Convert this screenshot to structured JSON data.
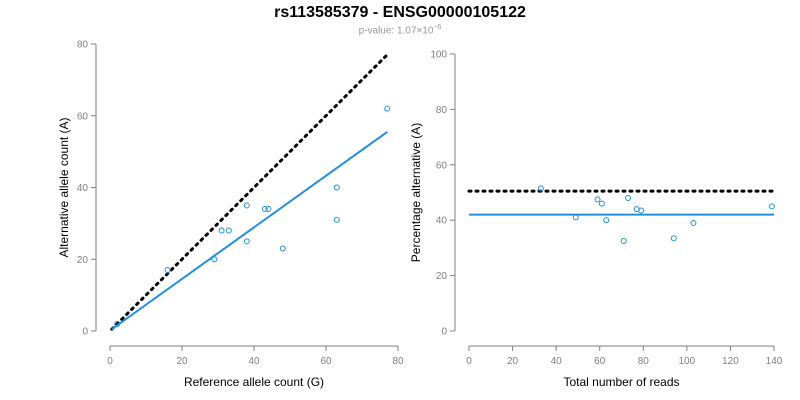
{
  "title": "rs113585379 - ENSG00000105122",
  "subtitle": {
    "prefix": "p-value: 1.07",
    "times": "×10",
    "exponent": "−6"
  },
  "colors": {
    "points": "#1f8fdf",
    "fit_line": "#1f8fdf",
    "reference_line": "#000000",
    "axis": "#7f7f7f"
  },
  "chart_data": [
    {
      "type": "scatter",
      "xlabel": "Reference allele count (G)",
      "ylabel": "Alternative allele count (A)",
      "xlim": [
        0,
        80
      ],
      "ylim": [
        0,
        80
      ],
      "xticks": [
        0,
        20,
        40,
        60,
        80
      ],
      "yticks": [
        0,
        20,
        40,
        60,
        80
      ],
      "grid": false,
      "points": [
        {
          "x": 2,
          "y": 2
        },
        {
          "x": 16,
          "y": 17
        },
        {
          "x": 29,
          "y": 20
        },
        {
          "x": 31,
          "y": 28
        },
        {
          "x": 33,
          "y": 28
        },
        {
          "x": 38,
          "y": 35
        },
        {
          "x": 38,
          "y": 25
        },
        {
          "x": 43,
          "y": 34
        },
        {
          "x": 44,
          "y": 34
        },
        {
          "x": 48,
          "y": 23
        },
        {
          "x": 63,
          "y": 40
        },
        {
          "x": 63,
          "y": 31
        },
        {
          "x": 77,
          "y": 62
        }
      ],
      "fit_line": {
        "x": [
          0.5,
          77
        ],
        "y": [
          0.5,
          55.5
        ]
      },
      "reference_line": {
        "x": [
          0.5,
          77
        ],
        "y": [
          0.5,
          77
        ]
      }
    },
    {
      "type": "scatter",
      "xlabel": "Total number of reads",
      "ylabel": "Percentage alternative (A)",
      "xlim": [
        0,
        140
      ],
      "ylim": [
        0,
        100
      ],
      "xticks": [
        0,
        20,
        40,
        60,
        80,
        100,
        120,
        140
      ],
      "yticks": [
        0,
        20,
        40,
        60,
        80,
        100
      ],
      "grid": false,
      "points": [
        {
          "x": 33,
          "y": 51.5
        },
        {
          "x": 49,
          "y": 41
        },
        {
          "x": 59,
          "y": 47.5
        },
        {
          "x": 61,
          "y": 46
        },
        {
          "x": 63,
          "y": 40
        },
        {
          "x": 71,
          "y": 32.5
        },
        {
          "x": 73,
          "y": 48
        },
        {
          "x": 77,
          "y": 44
        },
        {
          "x": 79,
          "y": 43.5
        },
        {
          "x": 94,
          "y": 33.5
        },
        {
          "x": 103,
          "y": 39
        },
        {
          "x": 139,
          "y": 45
        }
      ],
      "fit_line": {
        "x": [
          0,
          140
        ],
        "y": [
          42,
          42
        ]
      },
      "reference_line": {
        "x": [
          0,
          140
        ],
        "y": [
          50.5,
          50.5
        ]
      }
    }
  ]
}
